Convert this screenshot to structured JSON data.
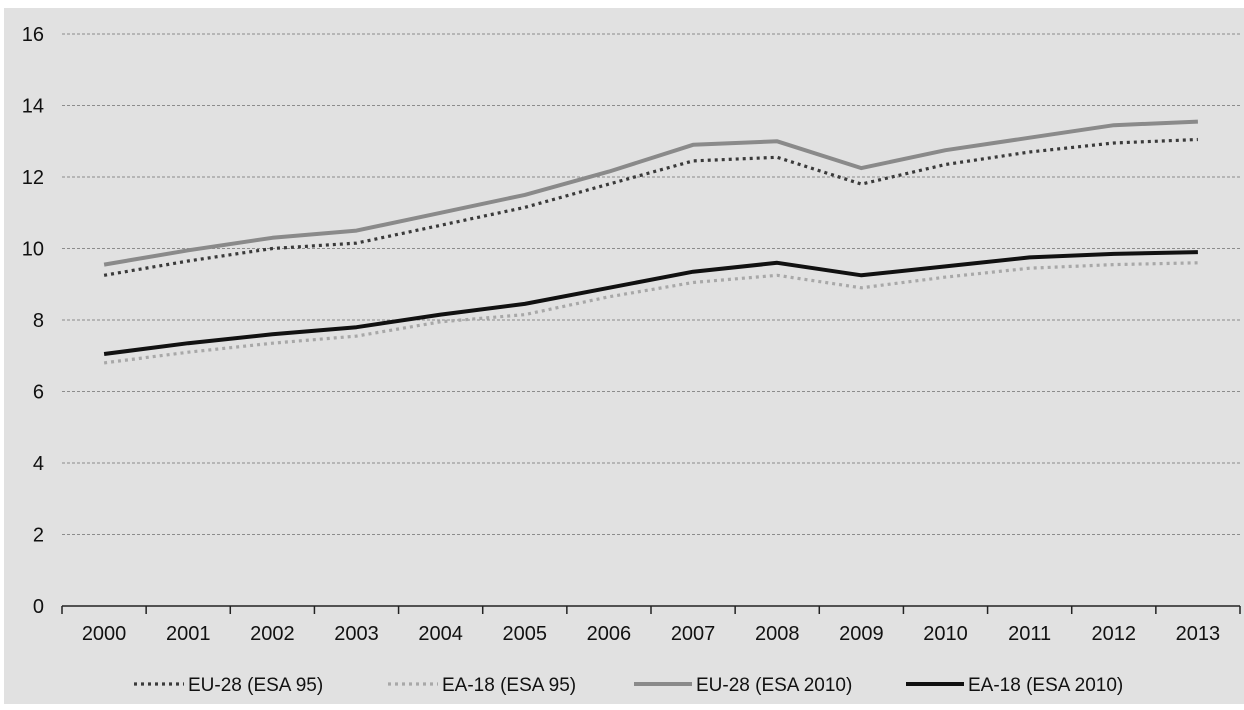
{
  "chart_data": {
    "type": "line",
    "title": "",
    "xlabel": "",
    "ylabel": "",
    "categories": [
      "2000",
      "2001",
      "2002",
      "2003",
      "2004",
      "2005",
      "2006",
      "2007",
      "2008",
      "2009",
      "2010",
      "2011",
      "2012",
      "2013"
    ],
    "ylim": [
      0,
      16
    ],
    "yticks": [
      "0",
      "2",
      "4",
      "6",
      "8",
      "10",
      "12",
      "14",
      "16"
    ],
    "grid": true,
    "legend_position": "bottom",
    "series": [
      {
        "name": "EU-28 (ESA 95)",
        "style": "dotted",
        "color": "#3a3a3a",
        "values": [
          9.25,
          9.65,
          10.0,
          10.15,
          10.65,
          11.15,
          11.8,
          12.45,
          12.55,
          11.8,
          12.35,
          12.7,
          12.95,
          13.05
        ]
      },
      {
        "name": "EA-18 (ESA 95)",
        "style": "dotted",
        "color": "#a8a8a8",
        "values": [
          6.8,
          7.1,
          7.35,
          7.55,
          7.95,
          8.15,
          8.65,
          9.05,
          9.25,
          8.9,
          9.2,
          9.45,
          9.55,
          9.6
        ]
      },
      {
        "name": "EU-28 (ESA 2010)",
        "style": "solid",
        "color": "#8a8a8a",
        "values": [
          9.55,
          9.95,
          10.3,
          10.5,
          11.0,
          11.5,
          12.15,
          12.9,
          13.0,
          12.25,
          12.75,
          13.1,
          13.45,
          13.55
        ]
      },
      {
        "name": "EA-18 (ESA 2010)",
        "style": "solid",
        "color": "#111111",
        "values": [
          7.05,
          7.35,
          7.6,
          7.8,
          8.15,
          8.45,
          8.9,
          9.35,
          9.6,
          9.25,
          9.5,
          9.75,
          9.85,
          9.9
        ]
      }
    ]
  }
}
